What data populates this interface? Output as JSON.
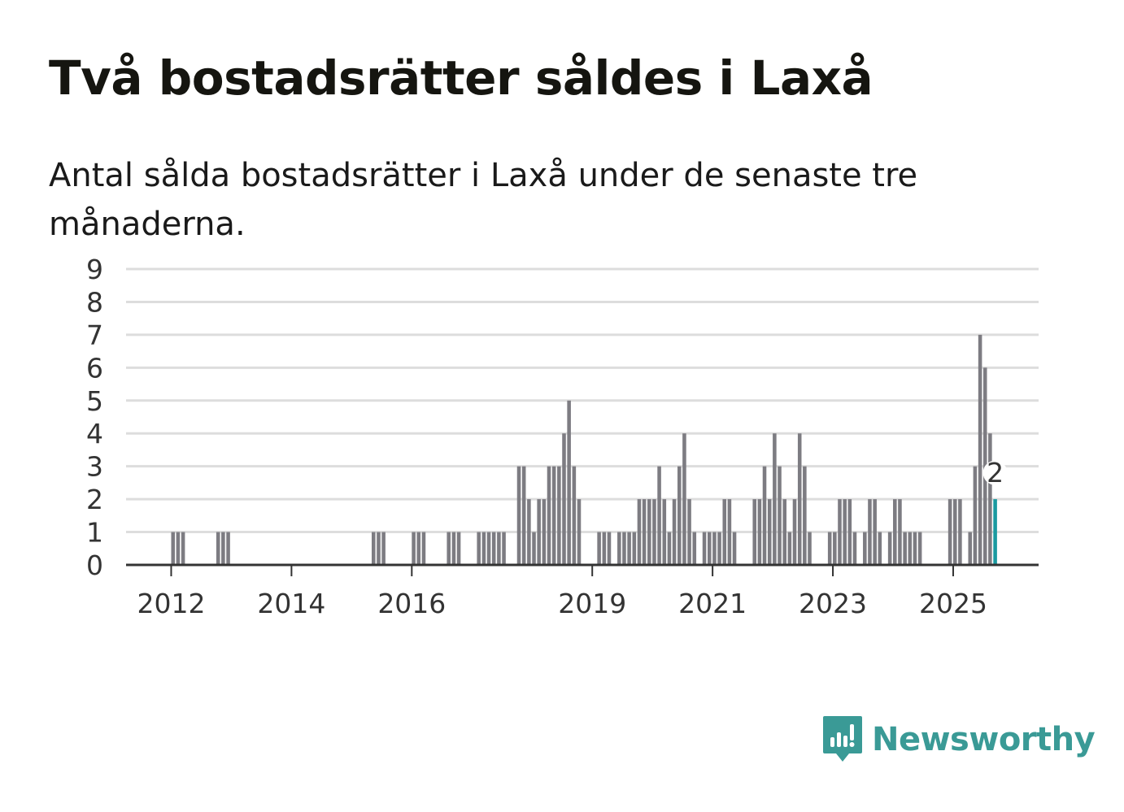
{
  "header": {
    "title": "Två bostadsrätter såldes i Laxå",
    "subtitle": "Antal sålda bostadsrätter i Laxå under de senaste tre månaderna."
  },
  "brand": {
    "name": "Newsworthy",
    "color": "#3a9a96"
  },
  "colors": {
    "bar": "#7d7c82",
    "highlight": "#1a9aa0",
    "grid": "#dddddd",
    "axis": "#333333"
  },
  "chart_data": {
    "type": "bar",
    "title": "Två bostadsrätter såldes i Laxå",
    "subtitle": "Antal sålda bostadsrätter i Laxå under de senaste tre månaderna.",
    "xlabel": "",
    "ylabel": "",
    "ylim": [
      0,
      9
    ],
    "yticks": [
      0,
      1,
      2,
      3,
      4,
      5,
      6,
      7,
      8,
      9
    ],
    "grid": true,
    "xlim": [
      2011.25,
      2026.42
    ],
    "xticks": [
      {
        "label": "2012",
        "x": 2012.0
      },
      {
        "label": "2014",
        "x": 2014.0
      },
      {
        "label": "2016",
        "x": 2016.0
      },
      {
        "label": "2019",
        "x": 2019.0
      },
      {
        "label": "2021",
        "x": 2021.0
      },
      {
        "label": "2023",
        "x": 2023.0
      },
      {
        "label": "2025",
        "x": 2025.0
      }
    ],
    "period_width": 0.0833,
    "series": [
      {
        "name": "Antal sålda bostadsrätter",
        "points": [
          {
            "x": 2012.0,
            "value": 1
          },
          {
            "x": 2012.083,
            "value": 1
          },
          {
            "x": 2012.167,
            "value": 1
          },
          {
            "x": 2012.75,
            "value": 1
          },
          {
            "x": 2012.833,
            "value": 1
          },
          {
            "x": 2012.917,
            "value": 1
          },
          {
            "x": 2015.333,
            "value": 1
          },
          {
            "x": 2015.417,
            "value": 1
          },
          {
            "x": 2015.5,
            "value": 1
          },
          {
            "x": 2016.0,
            "value": 1
          },
          {
            "x": 2016.083,
            "value": 1
          },
          {
            "x": 2016.167,
            "value": 1
          },
          {
            "x": 2016.583,
            "value": 1
          },
          {
            "x": 2016.667,
            "value": 1
          },
          {
            "x": 2016.75,
            "value": 1
          },
          {
            "x": 2017.083,
            "value": 1
          },
          {
            "x": 2017.167,
            "value": 1
          },
          {
            "x": 2017.25,
            "value": 1
          },
          {
            "x": 2017.333,
            "value": 1
          },
          {
            "x": 2017.417,
            "value": 1
          },
          {
            "x": 2017.5,
            "value": 1
          },
          {
            "x": 2017.75,
            "value": 3
          },
          {
            "x": 2017.833,
            "value": 3
          },
          {
            "x": 2017.917,
            "value": 2
          },
          {
            "x": 2018.0,
            "value": 1
          },
          {
            "x": 2018.083,
            "value": 2
          },
          {
            "x": 2018.167,
            "value": 2
          },
          {
            "x": 2018.25,
            "value": 3
          },
          {
            "x": 2018.333,
            "value": 3
          },
          {
            "x": 2018.417,
            "value": 3
          },
          {
            "x": 2018.5,
            "value": 4
          },
          {
            "x": 2018.583,
            "value": 5
          },
          {
            "x": 2018.667,
            "value": 3
          },
          {
            "x": 2018.75,
            "value": 2
          },
          {
            "x": 2019.083,
            "value": 1
          },
          {
            "x": 2019.167,
            "value": 1
          },
          {
            "x": 2019.25,
            "value": 1
          },
          {
            "x": 2019.417,
            "value": 1
          },
          {
            "x": 2019.5,
            "value": 1
          },
          {
            "x": 2019.583,
            "value": 1
          },
          {
            "x": 2019.667,
            "value": 1
          },
          {
            "x": 2019.75,
            "value": 2
          },
          {
            "x": 2019.833,
            "value": 2
          },
          {
            "x": 2019.917,
            "value": 2
          },
          {
            "x": 2020.0,
            "value": 2
          },
          {
            "x": 2020.083,
            "value": 3
          },
          {
            "x": 2020.167,
            "value": 2
          },
          {
            "x": 2020.25,
            "value": 1
          },
          {
            "x": 2020.333,
            "value": 2
          },
          {
            "x": 2020.417,
            "value": 3
          },
          {
            "x": 2020.5,
            "value": 4
          },
          {
            "x": 2020.583,
            "value": 2
          },
          {
            "x": 2020.667,
            "value": 1
          },
          {
            "x": 2020.833,
            "value": 1
          },
          {
            "x": 2020.917,
            "value": 1
          },
          {
            "x": 2021.0,
            "value": 1
          },
          {
            "x": 2021.083,
            "value": 1
          },
          {
            "x": 2021.167,
            "value": 2
          },
          {
            "x": 2021.25,
            "value": 2
          },
          {
            "x": 2021.333,
            "value": 1
          },
          {
            "x": 2021.667,
            "value": 2
          },
          {
            "x": 2021.75,
            "value": 2
          },
          {
            "x": 2021.833,
            "value": 3
          },
          {
            "x": 2021.917,
            "value": 2
          },
          {
            "x": 2022.0,
            "value": 4
          },
          {
            "x": 2022.083,
            "value": 3
          },
          {
            "x": 2022.167,
            "value": 2
          },
          {
            "x": 2022.25,
            "value": 1
          },
          {
            "x": 2022.333,
            "value": 2
          },
          {
            "x": 2022.417,
            "value": 4
          },
          {
            "x": 2022.5,
            "value": 3
          },
          {
            "x": 2022.583,
            "value": 1
          },
          {
            "x": 2022.917,
            "value": 1
          },
          {
            "x": 2023.0,
            "value": 1
          },
          {
            "x": 2023.083,
            "value": 2
          },
          {
            "x": 2023.167,
            "value": 2
          },
          {
            "x": 2023.25,
            "value": 2
          },
          {
            "x": 2023.333,
            "value": 1
          },
          {
            "x": 2023.5,
            "value": 1
          },
          {
            "x": 2023.583,
            "value": 2
          },
          {
            "x": 2023.667,
            "value": 2
          },
          {
            "x": 2023.75,
            "value": 1
          },
          {
            "x": 2023.917,
            "value": 1
          },
          {
            "x": 2024.0,
            "value": 2
          },
          {
            "x": 2024.083,
            "value": 2
          },
          {
            "x": 2024.167,
            "value": 1
          },
          {
            "x": 2024.25,
            "value": 1
          },
          {
            "x": 2024.333,
            "value": 1
          },
          {
            "x": 2024.417,
            "value": 1
          },
          {
            "x": 2024.917,
            "value": 2
          },
          {
            "x": 2025.0,
            "value": 2
          },
          {
            "x": 2025.083,
            "value": 2
          },
          {
            "x": 2025.25,
            "value": 1
          },
          {
            "x": 2025.333,
            "value": 3
          },
          {
            "x": 2025.417,
            "value": 7
          },
          {
            "x": 2025.5,
            "value": 6
          },
          {
            "x": 2025.583,
            "value": 4
          },
          {
            "x": 2025.667,
            "value": 2,
            "highlight": true,
            "label": "2"
          }
        ]
      }
    ]
  }
}
